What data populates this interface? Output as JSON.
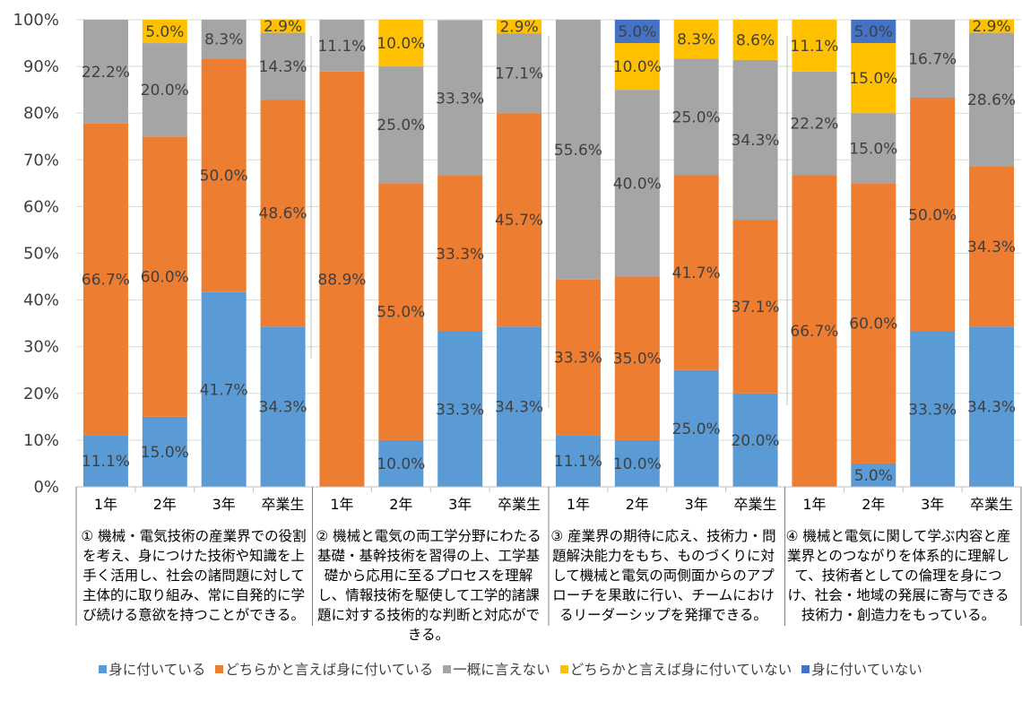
{
  "chart_data": {
    "type": "bar",
    "stacked": true,
    "ylim": [
      0,
      100
    ],
    "yticks": [
      "0%",
      "10%",
      "20%",
      "30%",
      "40%",
      "50%",
      "60%",
      "70%",
      "80%",
      "90%",
      "100%"
    ],
    "categories": [
      "1年",
      "2年",
      "3年",
      "卒業生",
      "1年",
      "2年",
      "3年",
      "卒業生",
      "1年",
      "2年",
      "3年",
      "卒業生",
      "1年",
      "2年",
      "3年",
      "卒業生"
    ],
    "groups": [
      {
        "label": "① 機械・電気技術の産業界での役割を考え、身につけた技術や知識を上手く活用し、社会の諸問題に対して主体的に取り組み、常に自発的に学び続ける意欲を持つことができる。"
      },
      {
        "label": "② 機械と電気の両工学分野にわたる基礎・基幹技術を習得の上、工学基礎から応用に至るプロセスを理解し、情報技術を駆使して工学的諸課題に対する技術的な判断と対応ができる。"
      },
      {
        "label": "③ 産業界の期待に応え、技術力・問題解決能力をもち、ものづくりに対して機械と電気の両側面からのアプローチを果敢に行い、チームにおけるリーダーシップを発揮できる。"
      },
      {
        "label": "④ 機械と電気に関して学ぶ内容と産業界とのつながりを体系的に理解して、技術者としての倫理を身につけ、社会・地域の発展に寄与できる技術力・創造力をもっている。"
      }
    ],
    "series": [
      {
        "name": "身に付いている",
        "color": "#5B9BD5",
        "values": [
          11.1,
          15.0,
          41.7,
          34.3,
          0,
          10.0,
          33.3,
          34.3,
          11.1,
          10.0,
          25.0,
          20.0,
          0,
          5.0,
          33.3,
          34.3
        ],
        "labels": [
          "11.1%",
          "15.0%",
          "41.7%",
          "34.3%",
          "",
          "10.0%",
          "33.3%",
          "34.3%",
          "11.1%",
          "10.0%",
          "25.0%",
          "20.0%",
          "",
          "5.0%",
          "33.3%",
          "34.3%"
        ]
      },
      {
        "name": "どちらかと言えば身に付いている",
        "color": "#ED7D31",
        "values": [
          66.7,
          60.0,
          50.0,
          48.6,
          88.9,
          55.0,
          33.3,
          45.7,
          33.3,
          35.0,
          41.7,
          37.1,
          66.7,
          60.0,
          50.0,
          34.3
        ],
        "labels": [
          "66.7%",
          "60.0%",
          "50.0%",
          "48.6%",
          "88.9%",
          "55.0%",
          "33.3%",
          "45.7%",
          "33.3%",
          "35.0%",
          "41.7%",
          "37.1%",
          "66.7%",
          "60.0%",
          "50.0%",
          "34.3%"
        ]
      },
      {
        "name": "一概に言えない",
        "color": "#A5A5A5",
        "values": [
          22.2,
          20.0,
          8.3,
          14.3,
          11.1,
          25.0,
          33.3,
          17.1,
          55.6,
          40.0,
          25.0,
          34.3,
          22.2,
          15.0,
          16.7,
          28.6
        ],
        "labels": [
          "22.2%",
          "20.0%",
          "8.3%",
          "14.3%",
          "11.1%",
          "25.0%",
          "33.3%",
          "17.1%",
          "55.6%",
          "40.0%",
          "25.0%",
          "34.3%",
          "22.2%",
          "15.0%",
          "16.7%",
          "28.6%"
        ]
      },
      {
        "name": "どちらかと言えば身に付いていない",
        "color": "#FFC000",
        "values": [
          0,
          5.0,
          0,
          2.9,
          0,
          10.0,
          0,
          2.9,
          0,
          10.0,
          8.3,
          8.6,
          11.1,
          15.0,
          0,
          2.9
        ],
        "labels": [
          "",
          "5.0%",
          "",
          "2.9%",
          "",
          "10.0%",
          "",
          "2.9%",
          "",
          "10.0%",
          "8.3%",
          "8.6%",
          "11.1%",
          "15.0%",
          "",
          "2.9%"
        ]
      },
      {
        "name": "身に付いていない",
        "color": "#4472C4",
        "values": [
          0,
          0,
          0,
          0,
          0,
          0,
          0,
          0,
          0,
          5.0,
          0,
          0,
          0,
          5.0,
          0,
          0
        ],
        "labels": [
          "",
          "",
          "",
          "",
          "",
          "",
          "",
          "",
          "",
          "5.0%",
          "",
          "",
          "",
          "5.0%",
          "",
          ""
        ]
      }
    ],
    "legend_position": "bottom",
    "grid": true
  }
}
